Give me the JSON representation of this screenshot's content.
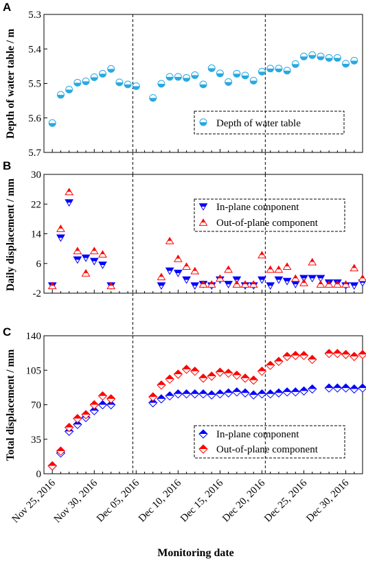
{
  "chart_data": [
    {
      "panel": "A",
      "type": "scatter",
      "ylabel": "Depth of water table / m",
      "ylim": [
        5.7,
        5.3
      ],
      "inverted_y": true,
      "yticks": [
        5.3,
        5.4,
        5.5,
        5.6,
        5.7
      ],
      "ytick_labels": [
        "5.3",
        "5.4",
        "5.5",
        "5.6",
        "5.7"
      ],
      "series": [
        {
          "name": "Depth of water table",
          "color": "#29a9e1",
          "marker": "circle-half",
          "points": [
            [
              1,
              5.615
            ],
            [
              2,
              5.533
            ],
            [
              3,
              5.518
            ],
            [
              4,
              5.498
            ],
            [
              5,
              5.494
            ],
            [
              6,
              5.482
            ],
            [
              7,
              5.472
            ],
            [
              8,
              5.458
            ],
            [
              9,
              5.497
            ],
            [
              10,
              5.503
            ],
            [
              11,
              5.508
            ],
            [
              13,
              5.542
            ],
            [
              14,
              5.501
            ],
            [
              15,
              5.481
            ],
            [
              16,
              5.481
            ],
            [
              17,
              5.484
            ],
            [
              18,
              5.476
            ],
            [
              19,
              5.503
            ],
            [
              20,
              5.456
            ],
            [
              21,
              5.471
            ],
            [
              22,
              5.496
            ],
            [
              23,
              5.472
            ],
            [
              24,
              5.477
            ],
            [
              25,
              5.492
            ],
            [
              26,
              5.466
            ],
            [
              27,
              5.457
            ],
            [
              28,
              5.457
            ],
            [
              29,
              5.463
            ],
            [
              30,
              5.444
            ],
            [
              31,
              5.422
            ],
            [
              32,
              5.418
            ],
            [
              33,
              5.422
            ],
            [
              34,
              5.426
            ],
            [
              35,
              5.426
            ],
            [
              36,
              5.443
            ],
            [
              37,
              5.434
            ]
          ]
        }
      ]
    },
    {
      "panel": "B",
      "type": "scatter",
      "ylabel": "Daily displacement / mm",
      "ylim": [
        -2,
        30
      ],
      "yticks": [
        -2,
        6,
        14,
        22,
        30
      ],
      "ytick_labels": [
        "-2",
        "6",
        "14",
        "22",
        "30"
      ],
      "series": [
        {
          "name": "In-plane component",
          "color": "#0000ff",
          "marker": "triangle-down",
          "points": [
            [
              1,
              0
            ],
            [
              2,
              12.9
            ],
            [
              3,
              22.4
            ],
            [
              4,
              7
            ],
            [
              5,
              7.5
            ],
            [
              6,
              6.6
            ],
            [
              7,
              5.6
            ],
            [
              8,
              0
            ],
            [
              14,
              0
            ],
            [
              15,
              4
            ],
            [
              16,
              3.4
            ],
            [
              17,
              1.6
            ],
            [
              18,
              0
            ],
            [
              19,
              0.4
            ],
            [
              20,
              0
            ],
            [
              21,
              1.6
            ],
            [
              22,
              0.4
            ],
            [
              23,
              1.6
            ],
            [
              24,
              0
            ],
            [
              25,
              0
            ],
            [
              26,
              1.6
            ],
            [
              27,
              0
            ],
            [
              28,
              1.6
            ],
            [
              29,
              1.2
            ],
            [
              30,
              0.4
            ],
            [
              31,
              2
            ],
            [
              32,
              2
            ],
            [
              33,
              2
            ],
            [
              34,
              0.8
            ],
            [
              35,
              0.8
            ],
            [
              36,
              0
            ],
            [
              37,
              0
            ],
            [
              38,
              0.8
            ]
          ]
        },
        {
          "name": "Out-of-plane component",
          "color": "#ff0000",
          "marker": "triangle-up",
          "points": [
            [
              1,
              0
            ],
            [
              2,
              15.4
            ],
            [
              3,
              25.3
            ],
            [
              4,
              9.4
            ],
            [
              5,
              3.4
            ],
            [
              6,
              9.4
            ],
            [
              7,
              8.5
            ],
            [
              8,
              0
            ],
            [
              14,
              2.4
            ],
            [
              15,
              12.1
            ],
            [
              16,
              7.3
            ],
            [
              17,
              5.2
            ],
            [
              18,
              4
            ],
            [
              19,
              0.4
            ],
            [
              20,
              0.4
            ],
            [
              21,
              2
            ],
            [
              22,
              4.4
            ],
            [
              23,
              0.4
            ],
            [
              24,
              0.4
            ],
            [
              25,
              0.4
            ],
            [
              26,
              8.3
            ],
            [
              27,
              4.4
            ],
            [
              28,
              4.4
            ],
            [
              29,
              5.2
            ],
            [
              30,
              2
            ],
            [
              31,
              0.8
            ],
            [
              32,
              6.4
            ],
            [
              33,
              0.4
            ],
            [
              34,
              0.4
            ],
            [
              35,
              0.4
            ],
            [
              36,
              0.4
            ],
            [
              37,
              4.8
            ],
            [
              38,
              2
            ]
          ]
        }
      ]
    },
    {
      "panel": "C",
      "type": "scatter",
      "ylabel": "Total displacement / mm",
      "ylim": [
        0,
        140
      ],
      "yticks": [
        0,
        35,
        70,
        105,
        140
      ],
      "ytick_labels": [
        "0",
        "35",
        "70",
        "105",
        "140"
      ],
      "series": [
        {
          "name": "In-plane component",
          "color": "#0000ff",
          "marker": "diamond-half",
          "points": [
            [
              1,
              8
            ],
            [
              2,
              21
            ],
            [
              3,
              43
            ],
            [
              4,
              50
            ],
            [
              5,
              57
            ],
            [
              6,
              64
            ],
            [
              7,
              70
            ],
            [
              8,
              70
            ],
            [
              13,
              72
            ],
            [
              14,
              76
            ],
            [
              15,
              79
            ],
            [
              16,
              81
            ],
            [
              17,
              81
            ],
            [
              18,
              81
            ],
            [
              19,
              81
            ],
            [
              20,
              80
            ],
            [
              21,
              81
            ],
            [
              22,
              82
            ],
            [
              23,
              83
            ],
            [
              24,
              82
            ],
            [
              25,
              80
            ],
            [
              26,
              81
            ],
            [
              27,
              81
            ],
            [
              28,
              82
            ],
            [
              29,
              83
            ],
            [
              30,
              83
            ],
            [
              31,
              84
            ],
            [
              32,
              86
            ],
            [
              34,
              87
            ],
            [
              35,
              87
            ],
            [
              36,
              87
            ],
            [
              37,
              86
            ],
            [
              38,
              87
            ]
          ]
        },
        {
          "name": "Out-of-plane component",
          "color": "#ff0000",
          "marker": "diamond-half",
          "points": [
            [
              1,
              8
            ],
            [
              2,
              23
            ],
            [
              3,
              47
            ],
            [
              4,
              56
            ],
            [
              5,
              60
            ],
            [
              6,
              70
            ],
            [
              7,
              79
            ],
            [
              8,
              76
            ],
            [
              13,
              78
            ],
            [
              14,
              90
            ],
            [
              15,
              96
            ],
            [
              16,
              101
            ],
            [
              17,
              106
            ],
            [
              18,
              104
            ],
            [
              19,
              97
            ],
            [
              20,
              99
            ],
            [
              21,
              103
            ],
            [
              22,
              102
            ],
            [
              23,
              100
            ],
            [
              24,
              97
            ],
            [
              25,
              95
            ],
            [
              26,
              104
            ],
            [
              27,
              110
            ],
            [
              28,
              114
            ],
            [
              29,
              119
            ],
            [
              30,
              120
            ],
            [
              31,
              120
            ],
            [
              32,
              116
            ],
            [
              34,
              122
            ],
            [
              35,
              122
            ],
            [
              36,
              121
            ],
            [
              37,
              119
            ],
            [
              38,
              121
            ]
          ]
        }
      ]
    }
  ],
  "x_axis": {
    "label": "Monitoring date",
    "range": [
      0,
      38
    ],
    "tick_day_indices": [
      1,
      6,
      11,
      16,
      21,
      26,
      31,
      36
    ],
    "tick_labels": [
      "Nov 25, 2016",
      "Nov 30, 2016",
      "Dec 05, 2016",
      "Dec 10, 2016",
      "Dec 15, 2016",
      "Dec 20, 2016",
      "Dec 25, 2016",
      "Dec 30, 2016"
    ],
    "vertical_dashed_lines_at_day": [
      10.6,
      26.4
    ]
  },
  "panel_letters": [
    "A",
    "B",
    "C"
  ],
  "legends": {
    "A": [
      "Depth of water table"
    ],
    "B": [
      "In-plane component",
      "Out-of-plane component"
    ],
    "C": [
      "In-plane component",
      "Out-of-plane component"
    ]
  },
  "colors": {
    "water": "#29a9e1",
    "in_plane": "#0000ff",
    "out_of_plane": "#ff0000"
  }
}
